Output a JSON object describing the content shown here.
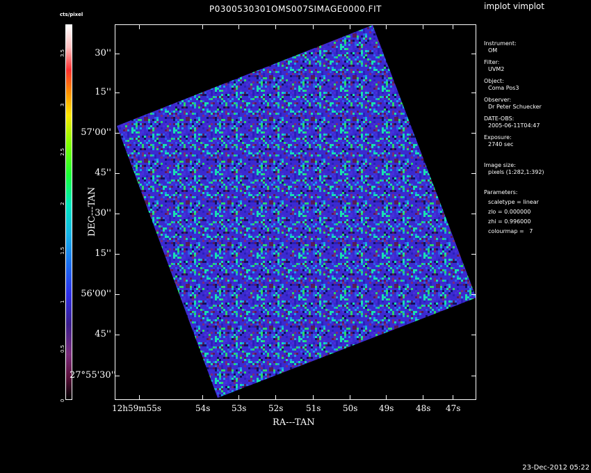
{
  "window": {
    "title": "P0300530301OMS007SIMAGE0000.FIT",
    "app_label": "implot vimplot",
    "timestamp": "23-Dec-2012 05:22"
  },
  "colorbar": {
    "label": "cts/pixel",
    "ticks": [
      "0",
      "0.5",
      "1",
      "1.5",
      "2",
      "2.5",
      "3",
      "3.5"
    ]
  },
  "axes": {
    "ylabel": "DEC---TAN",
    "xlabel": "RA---TAN",
    "yticks": [
      "30''",
      "15''",
      "57'00''",
      "45''",
      "30''",
      "15''",
      "56'00''",
      "45''",
      "27°55'30''"
    ],
    "xticks": [
      "12h59m55s",
      "54s",
      "53s",
      "52s",
      "51s",
      "50s",
      "49s",
      "48s",
      "47s"
    ]
  },
  "info": {
    "instrument_label": "Instrument:",
    "instrument": "OM",
    "filter_label": "Filter:",
    "filter": "UVM2",
    "object_label": "Object:",
    "object": "Coma Pos3",
    "observer_label": "Observer:",
    "observer": "Dr Peter Schuecker",
    "date_label": "DATE-OBS:",
    "date": "2005-06-11T04:47",
    "exposure_label": "Exposure:",
    "exposure": "2740 sec",
    "size_label": "Image size:",
    "size": "pixels (1:282,1:392)",
    "params_label": "Parameters:",
    "scaletype": "scaletype = linear",
    "zlo": "zlo = 0.000000",
    "zhi": "zhi = 0.996000",
    "colourmap": "colourmap =   7"
  }
}
